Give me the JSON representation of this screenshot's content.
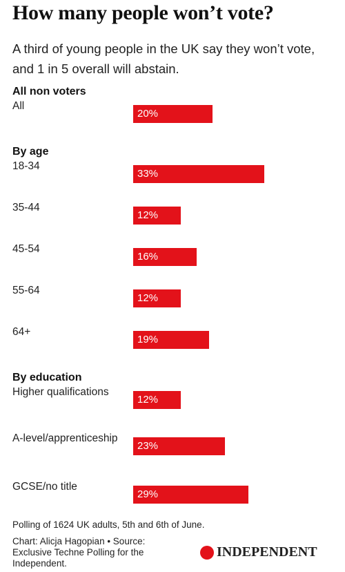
{
  "chart_data": {
    "type": "bar",
    "title": "How many people won’t vote?",
    "subtitle": "A third of young people in the UK say they won’t vote, and 1 in 5 overall will abstain.",
    "color": "#e3121a",
    "groups": [
      {
        "name": "All non voters",
        "categories": [
          "All"
        ],
        "values": [
          20
        ],
        "value_labels": [
          "20%"
        ]
      },
      {
        "name": "By age",
        "categories": [
          "18-34",
          "35-44",
          "45-54",
          "55-64",
          "64+"
        ],
        "values": [
          33,
          12,
          16,
          12,
          19
        ],
        "value_labels": [
          "33%",
          "12%",
          "16%",
          "12%",
          "19%"
        ]
      },
      {
        "name": "By education",
        "categories": [
          "Higher qualifications",
          "A-level/apprenticeship",
          "GCSE/no title"
        ],
        "values": [
          12,
          23,
          29
        ],
        "value_labels": [
          "12%",
          "23%",
          "29%"
        ]
      }
    ],
    "note": "Polling of 1624 UK adults, 5th and 6th of June.",
    "credit": "Chart: Alicja Hagopian • Source: Exclusive Techne Polling for the Independent.",
    "logo": "INDEPENDENT"
  }
}
